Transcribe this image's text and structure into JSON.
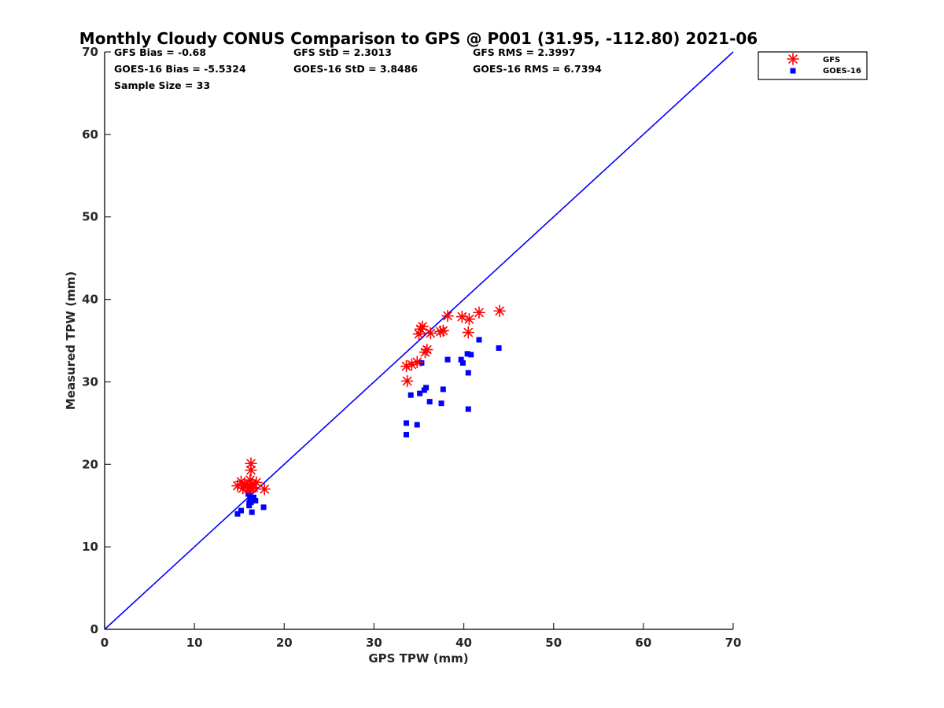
{
  "chart_data": {
    "type": "scatter",
    "title": "Monthly Cloudy CONUS Comparison to GPS @ P001 (31.95, -112.80) 2021-06",
    "xlabel": "GPS TPW (mm)",
    "ylabel": "Measured TPW (mm)",
    "xlim": [
      0,
      70
    ],
    "ylim": [
      0,
      70
    ],
    "xticks": [
      "0",
      "10",
      "20",
      "30",
      "40",
      "50",
      "60",
      "70"
    ],
    "yticks": [
      "0",
      "10",
      "20",
      "30",
      "40",
      "50",
      "60",
      "70"
    ],
    "grid": false,
    "legend_position": "top-right outside",
    "reference_line": {
      "name": "1:1 line",
      "x": [
        0,
        70
      ],
      "y": [
        0,
        70
      ],
      "color": "#0000ff"
    },
    "stats": {
      "gfs_bias": "GFS Bias = -0.68",
      "goes_bias": "GOES-16 Bias = -5.5324",
      "sample_size": "Sample Size = 33",
      "gfs_std": "GFS StD = 2.3013",
      "goes_std": "GOES-16 StD = 3.8486",
      "gfs_rms": "GFS RMS = 2.3997",
      "goes_rms": "GOES-16 RMS = 6.7394"
    },
    "series": [
      {
        "name": "GFS",
        "marker": "asterisk",
        "color": "#ff0000",
        "x": [
          14.8,
          15.2,
          15.4,
          15.6,
          15.9,
          16.0,
          16.2,
          16.2,
          16.3,
          16.3,
          16.4,
          16.4,
          16.6,
          16.9,
          17.8,
          33.7,
          33.6,
          34.2,
          34.8,
          35.0,
          35.2,
          35.4,
          35.7,
          35.9,
          36.3,
          37.4,
          37.7,
          38.2,
          39.8,
          40.5,
          40.6,
          41.7,
          44.0
        ],
        "y": [
          17.4,
          17.9,
          17.1,
          17.6,
          17.3,
          17.1,
          17.2,
          18.1,
          20.1,
          19.3,
          17.1,
          17.6,
          17.2,
          17.8,
          17.0,
          30.1,
          31.9,
          32.1,
          32.4,
          35.8,
          36.4,
          36.7,
          33.6,
          33.9,
          35.9,
          36.1,
          36.2,
          38.0,
          37.9,
          36.0,
          37.6,
          38.4,
          38.6
        ]
      },
      {
        "name": "GOES-16",
        "marker": "square",
        "color": "#0000ff",
        "x": [
          14.8,
          15.2,
          16.0,
          16.1,
          16.2,
          16.2,
          16.3,
          16.4,
          16.5,
          16.6,
          16.8,
          17.7,
          33.6,
          33.6,
          34.1,
          34.8,
          35.1,
          35.3,
          35.6,
          35.8,
          36.2,
          37.5,
          37.7,
          38.2,
          39.7,
          39.9,
          40.4,
          40.5,
          40.5,
          40.8,
          41.7,
          43.9,
          16.1
        ],
        "y": [
          14.0,
          14.4,
          16.4,
          15.0,
          15.9,
          16.2,
          15.4,
          14.2,
          15.6,
          16.0,
          15.6,
          14.8,
          23.6,
          25.0,
          28.4,
          24.8,
          28.6,
          32.3,
          29.0,
          29.3,
          27.6,
          27.4,
          29.1,
          32.7,
          32.7,
          32.3,
          33.4,
          31.1,
          26.7,
          33.3,
          35.1,
          34.1,
          15.3
        ]
      }
    ]
  }
}
